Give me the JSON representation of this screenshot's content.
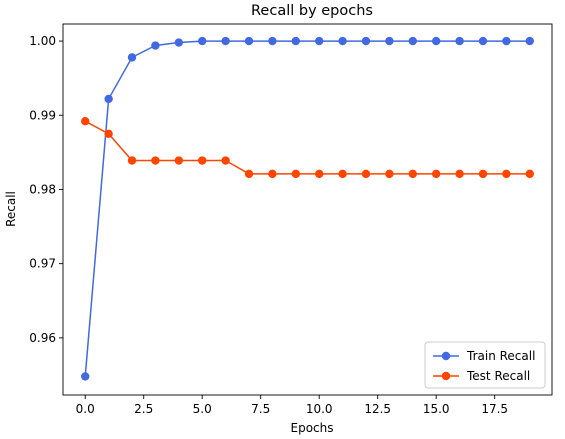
{
  "chart_data": {
    "type": "line",
    "title": "Recall by epochs",
    "xlabel": "Epochs",
    "ylabel": "Recall",
    "xlim": [
      -0.95,
      19.95
    ],
    "ylim": [
      0.9523,
      1.0023
    ],
    "xticks": [
      0.0,
      2.5,
      5.0,
      7.5,
      10.0,
      12.5,
      15.0,
      17.5
    ],
    "xtick_labels": [
      "0.0",
      "2.5",
      "5.0",
      "7.5",
      "10.0",
      "12.5",
      "15.0",
      "17.5"
    ],
    "yticks": [
      0.96,
      0.97,
      0.98,
      0.99,
      1.0
    ],
    "ytick_labels": [
      "0.96",
      "0.97",
      "0.98",
      "0.99",
      "1.00"
    ],
    "grid": false,
    "legend_position": "lower-right",
    "x": [
      0,
      1,
      2,
      3,
      4,
      5,
      6,
      7,
      8,
      9,
      10,
      11,
      12,
      13,
      14,
      15,
      16,
      17,
      18,
      19
    ],
    "series": [
      {
        "name": "Train Recall",
        "color": "#4169e1",
        "values": [
          0.9548,
          0.9922,
          0.9978,
          0.9994,
          0.9998,
          1.0,
          1.0,
          1.0,
          1.0,
          1.0,
          1.0,
          1.0,
          1.0,
          1.0,
          1.0,
          1.0,
          1.0,
          1.0,
          1.0,
          1.0
        ]
      },
      {
        "name": "Test Recall",
        "color": "#ff4500",
        "values": [
          0.9892,
          0.9875,
          0.9839,
          0.9839,
          0.9839,
          0.9839,
          0.9839,
          0.9821,
          0.9821,
          0.9821,
          0.9821,
          0.9821,
          0.9821,
          0.9821,
          0.9821,
          0.9821,
          0.9821,
          0.9821,
          0.9821,
          0.9821
        ]
      }
    ]
  }
}
